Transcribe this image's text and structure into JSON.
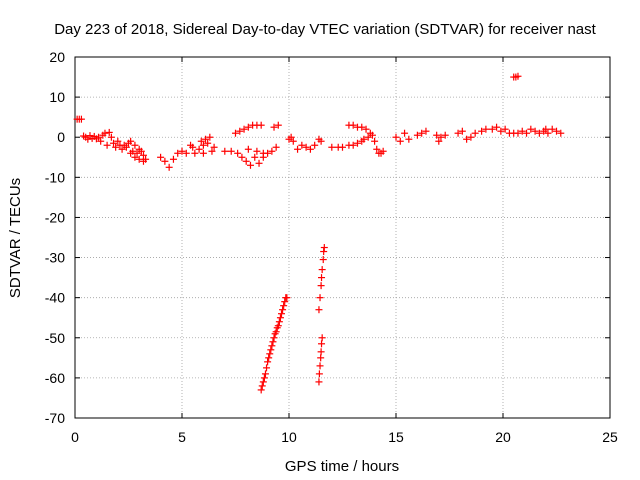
{
  "chart_data": {
    "type": "scatter",
    "title": "Day 223 of 2018, Sidereal Day-to-day VTEC variation (SDTVAR) for receiver nast",
    "xlabel": "GPS time / hours",
    "ylabel": "SDTVAR / TECUs",
    "xlim": [
      0,
      25
    ],
    "ylim": [
      -70,
      20
    ],
    "xticks": [
      0,
      5,
      10,
      15,
      20,
      25
    ],
    "yticks": [
      -70,
      -60,
      -50,
      -40,
      -30,
      -20,
      -10,
      0,
      10,
      20
    ],
    "grid": true,
    "marker": "plus",
    "color": "#ff0000",
    "series": [
      {
        "name": "SDTVAR",
        "points": [
          [
            0.1,
            4.5
          ],
          [
            0.2,
            4.5
          ],
          [
            0.3,
            4.5
          ],
          [
            0.4,
            0.3
          ],
          [
            0.5,
            0.0
          ],
          [
            0.6,
            -0.5
          ],
          [
            0.7,
            0.4
          ],
          [
            0.8,
            -0.3
          ],
          [
            0.9,
            0.2
          ],
          [
            1.0,
            -0.4
          ],
          [
            1.1,
            0.0
          ],
          [
            1.2,
            -1.0
          ],
          [
            1.3,
            0.5
          ],
          [
            1.4,
            1.0
          ],
          [
            1.5,
            -2.0
          ],
          [
            1.6,
            1.2
          ],
          [
            1.7,
            0.0
          ],
          [
            1.8,
            -1.5
          ],
          [
            1.9,
            -2.5
          ],
          [
            2.0,
            -1.0
          ],
          [
            2.1,
            -2.0
          ],
          [
            2.2,
            -3.0
          ],
          [
            2.3,
            -2.0
          ],
          [
            2.4,
            -2.5
          ],
          [
            2.5,
            -1.5
          ],
          [
            2.6,
            -4.0
          ],
          [
            2.7,
            -3.5
          ],
          [
            2.8,
            -5.0
          ],
          [
            2.9,
            -4.0
          ],
          [
            3.0,
            -5.5
          ],
          [
            3.1,
            -3.5
          ],
          [
            3.2,
            -4.5
          ],
          [
            3.3,
            -5.5
          ],
          [
            2.6,
            -1.0
          ],
          [
            2.8,
            -2.0
          ],
          [
            3.0,
            -3.0
          ],
          [
            3.2,
            -6.0
          ],
          [
            4.0,
            -5.0
          ],
          [
            4.2,
            -6.0
          ],
          [
            4.4,
            -7.5
          ],
          [
            4.6,
            -5.5
          ],
          [
            4.8,
            -4.0
          ],
          [
            5.0,
            -3.5
          ],
          [
            5.2,
            -4.0
          ],
          [
            5.5,
            -2.5
          ],
          [
            5.6,
            -4.0
          ],
          [
            5.8,
            -3.0
          ],
          [
            5.9,
            -1.0
          ],
          [
            6.0,
            -2.0
          ],
          [
            6.1,
            -0.5
          ],
          [
            6.2,
            -1.5
          ],
          [
            6.3,
            0.0
          ],
          [
            6.4,
            -3.5
          ],
          [
            6.5,
            -2.5
          ],
          [
            6.0,
            -4.0
          ],
          [
            5.4,
            -2.0
          ],
          [
            7.0,
            -3.5
          ],
          [
            7.3,
            -3.5
          ],
          [
            7.6,
            -4.0
          ],
          [
            7.8,
            -5.0
          ],
          [
            8.0,
            -6.0
          ],
          [
            8.2,
            -7.0
          ],
          [
            8.4,
            -5.0
          ],
          [
            8.6,
            -6.5
          ],
          [
            8.8,
            -5.0
          ],
          [
            9.0,
            -4.0
          ],
          [
            9.2,
            -3.5
          ],
          [
            9.4,
            -2.5
          ],
          [
            8.1,
            -3.0
          ],
          [
            8.5,
            -3.5
          ],
          [
            8.8,
            -4.0
          ],
          [
            7.5,
            1.0
          ],
          [
            7.7,
            1.5
          ],
          [
            7.9,
            2.0
          ],
          [
            8.1,
            2.5
          ],
          [
            8.3,
            3.0
          ],
          [
            8.5,
            3.0
          ],
          [
            8.7,
            3.0
          ],
          [
            9.3,
            2.5
          ],
          [
            9.5,
            3.0
          ],
          [
            10.0,
            -0.5
          ],
          [
            10.1,
            0.0
          ],
          [
            10.2,
            -1.0
          ],
          [
            10.4,
            -3.0
          ],
          [
            10.6,
            -2.0
          ],
          [
            10.8,
            -2.5
          ],
          [
            11.0,
            -3.0
          ],
          [
            11.2,
            -2.0
          ],
          [
            11.4,
            -0.5
          ],
          [
            11.5,
            -1.0
          ],
          [
            12.0,
            -2.5
          ],
          [
            12.3,
            -2.5
          ],
          [
            12.5,
            -2.5
          ],
          [
            12.8,
            -2.0
          ],
          [
            13.0,
            -2.0
          ],
          [
            13.2,
            -1.5
          ],
          [
            13.4,
            -1.0
          ],
          [
            12.8,
            3.0
          ],
          [
            13.0,
            3.0
          ],
          [
            13.2,
            2.5
          ],
          [
            13.4,
            2.5
          ],
          [
            13.6,
            2.0
          ],
          [
            13.8,
            1.0
          ],
          [
            13.5,
            -0.5
          ],
          [
            13.7,
            0.0
          ],
          [
            13.9,
            0.5
          ],
          [
            14.0,
            -1.0
          ],
          [
            14.1,
            -3.0
          ],
          [
            14.2,
            -4.0
          ],
          [
            14.3,
            -4.0
          ],
          [
            14.4,
            -3.5
          ],
          [
            15.0,
            0.0
          ],
          [
            15.2,
            -1.0
          ],
          [
            15.4,
            1.0
          ],
          [
            15.6,
            -0.5
          ],
          [
            16.0,
            0.5
          ],
          [
            16.2,
            1.0
          ],
          [
            16.4,
            1.5
          ],
          [
            16.9,
            0.5
          ],
          [
            17.0,
            -1.0
          ],
          [
            17.1,
            0.0
          ],
          [
            17.3,
            0.5
          ],
          [
            17.9,
            1.0
          ],
          [
            18.1,
            1.5
          ],
          [
            18.3,
            -0.5
          ],
          [
            18.5,
            0.0
          ],
          [
            18.7,
            1.0
          ],
          [
            19.0,
            1.5
          ],
          [
            19.2,
            2.0
          ],
          [
            19.5,
            2.0
          ],
          [
            19.7,
            2.5
          ],
          [
            19.9,
            1.5
          ],
          [
            20.1,
            2.0
          ],
          [
            20.3,
            1.0
          ],
          [
            20.5,
            1.0
          ],
          [
            20.7,
            1.0
          ],
          [
            20.9,
            1.5
          ],
          [
            21.1,
            1.0
          ],
          [
            21.3,
            2.0
          ],
          [
            21.5,
            1.5
          ],
          [
            21.7,
            1.0
          ],
          [
            21.9,
            1.5
          ],
          [
            22.0,
            2.0
          ],
          [
            22.1,
            1.0
          ],
          [
            22.3,
            2.0
          ],
          [
            22.5,
            1.5
          ],
          [
            22.7,
            1.0
          ],
          [
            20.5,
            15.0
          ],
          [
            20.6,
            15.0
          ],
          [
            20.7,
            15.2
          ],
          [
            8.7,
            -63.0
          ],
          [
            8.8,
            -61.0
          ],
          [
            8.9,
            -59.0
          ],
          [
            9.0,
            -56.0
          ],
          [
            9.1,
            -54.0
          ],
          [
            9.2,
            -52.0
          ],
          [
            9.3,
            -50.0
          ],
          [
            9.4,
            -48.5
          ],
          [
            9.5,
            -47.0
          ],
          [
            9.6,
            -45.0
          ],
          [
            9.7,
            -43.0
          ],
          [
            9.8,
            -41.0
          ],
          [
            9.85,
            -40.0
          ],
          [
            9.9,
            -40.0
          ],
          [
            8.75,
            -62.0
          ],
          [
            8.85,
            -60.0
          ],
          [
            8.95,
            -57.5
          ],
          [
            9.05,
            -55.0
          ],
          [
            9.15,
            -53.0
          ],
          [
            9.25,
            -51.0
          ],
          [
            9.35,
            -49.0
          ],
          [
            9.45,
            -47.5
          ],
          [
            9.55,
            -46.0
          ],
          [
            9.65,
            -44.0
          ],
          [
            9.75,
            -42.0
          ],
          [
            11.4,
            -43.0
          ],
          [
            11.45,
            -40.0
          ],
          [
            11.5,
            -37.0
          ],
          [
            11.52,
            -35.0
          ],
          [
            11.55,
            -33.0
          ],
          [
            11.6,
            -30.5
          ],
          [
            11.62,
            -28.5
          ],
          [
            11.65,
            -27.5
          ],
          [
            11.4,
            -61.0
          ],
          [
            11.42,
            -59.0
          ],
          [
            11.45,
            -57.0
          ],
          [
            11.48,
            -55.0
          ],
          [
            11.5,
            -53.5
          ],
          [
            11.52,
            -51.5
          ],
          [
            11.55,
            -50.0
          ]
        ]
      }
    ]
  }
}
